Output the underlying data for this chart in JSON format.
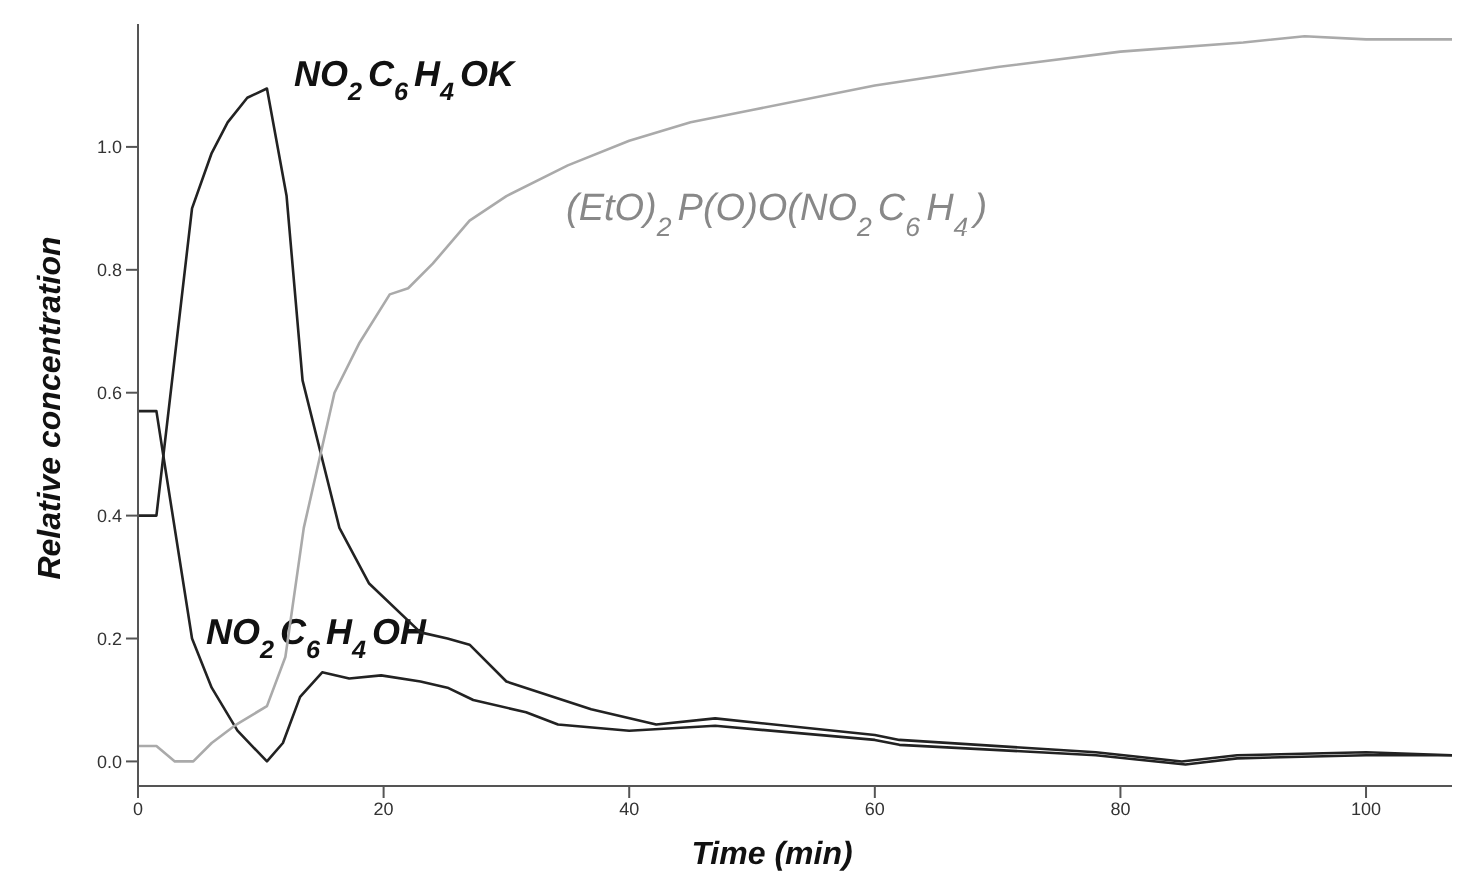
{
  "chart_data": {
    "type": "line",
    "xlabel": "Time (min)",
    "ylabel": "Relative concentration",
    "xlim": [
      0,
      107
    ],
    "xticks": [
      0,
      20,
      40,
      60,
      80,
      100
    ],
    "ylim": [
      -0.04,
      1.2
    ],
    "yticks": [
      {
        "value": 0,
        "label": "0.0"
      },
      {
        "value": 0.2,
        "label": "0.2"
      },
      {
        "value": 0.4,
        "label": "0.4"
      },
      {
        "value": 0.6,
        "label": "0.6"
      },
      {
        "value": 0.8,
        "label": "0.8"
      },
      {
        "value": 1,
        "label": "1.0"
      }
    ],
    "grid": false,
    "legend": false,
    "marker": "none",
    "line_style": "solid",
    "series": [
      {
        "name": "NO$_{2}$C$_{6}$H$_{4}$OK",
        "color": "#222222",
        "x": [
          0,
          1.5,
          4.4,
          6,
          7.3,
          8.9,
          10.5,
          12.1,
          13.4,
          16.4,
          18.8,
          23,
          25.2,
          27,
          30,
          36.9,
          42.2,
          47,
          60,
          62,
          78,
          85,
          89.5,
          100,
          107
        ],
        "values": [
          0.4,
          0.4,
          0.9,
          0.99,
          1.04,
          1.08,
          1.095,
          0.92,
          0.62,
          0.38,
          0.29,
          0.21,
          0.2,
          0.19,
          0.13,
          0.085,
          0.06,
          0.07,
          0.043,
          0.035,
          0.015,
          0.0,
          0.01,
          0.015,
          0.01
        ]
      },
      {
        "name": "NO$_{2}$C$_{6}$H$_{4}$OH",
        "color": "#222222",
        "x": [
          0,
          1.5,
          2.2,
          4.4,
          6,
          8.1,
          10.5,
          11.8,
          13.2,
          15,
          17.2,
          19.8,
          23,
          25.2,
          27.3,
          31.6,
          34.2,
          40,
          47,
          60,
          62,
          78,
          85.3,
          89.5,
          100,
          107
        ],
        "values": [
          0.57,
          0.57,
          0.48,
          0.2,
          0.12,
          0.05,
          0.0,
          0.03,
          0.105,
          0.145,
          0.135,
          0.14,
          0.13,
          0.12,
          0.1,
          0.08,
          0.06,
          0.05,
          0.058,
          0.035,
          0.027,
          0.01,
          -0.005,
          0.005,
          0.01,
          0.01
        ]
      },
      {
        "name": "(EtO)$_{2}$P(O)O(NO$_{2}$C$_{6}$H$_{4}$)",
        "color": "#aaaaaa",
        "x": [
          0,
          1.5,
          3,
          4.5,
          6,
          8,
          10.5,
          12,
          13.5,
          16,
          18,
          20.5,
          22,
          24,
          27,
          30,
          35,
          40,
          45,
          50,
          60,
          70,
          80,
          90,
          95,
          100,
          107
        ],
        "values": [
          0.025,
          0.025,
          0.0,
          0.0,
          0.03,
          0.06,
          0.09,
          0.17,
          0.38,
          0.6,
          0.68,
          0.76,
          0.77,
          0.81,
          0.88,
          0.92,
          0.97,
          1.01,
          1.04,
          1.06,
          1.1,
          1.13,
          1.155,
          1.17,
          1.18,
          1.175,
          1.175
        ]
      }
    ]
  }
}
